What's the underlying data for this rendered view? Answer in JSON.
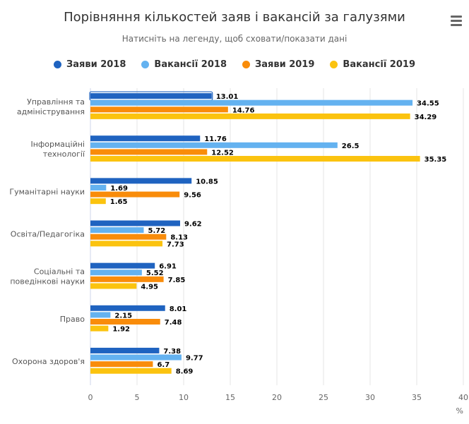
{
  "title": "Порівняння кількостей заяв і вакансій за галузями",
  "subtitle": "Натисніть на легенду, щоб сховати/показати дані",
  "menu_icon": "hamburger-icon",
  "chart_data": {
    "type": "bar",
    "orientation": "horizontal",
    "categories": [
      [
        "Управління та",
        "адміністрування"
      ],
      [
        "Інформаційні",
        "технології"
      ],
      [
        "Гуманітарні науки"
      ],
      [
        "Освіта/Педагогіка"
      ],
      [
        "Соціальні та",
        "поведінкові науки"
      ],
      [
        "Право"
      ],
      [
        "Охорона здоров'я"
      ]
    ],
    "series": [
      {
        "name": "Заяви 2018",
        "color": "#1f63c0",
        "values": [
          13.01,
          11.76,
          10.85,
          9.62,
          6.91,
          8.01,
          7.38
        ]
      },
      {
        "name": "Вакансії 2018",
        "color": "#64b2f0",
        "values": [
          34.55,
          26.5,
          1.69,
          5.72,
          5.52,
          2.15,
          9.77
        ]
      },
      {
        "name": "Заяви 2019",
        "color": "#f98c0a",
        "values": [
          14.76,
          12.52,
          9.56,
          8.13,
          7.85,
          7.48,
          6.7
        ]
      },
      {
        "name": "Вакансії 2019",
        "color": "#fbc30f",
        "values": [
          34.29,
          35.35,
          1.65,
          7.73,
          4.95,
          1.92,
          8.69
        ]
      }
    ],
    "xlim": [
      0,
      40
    ],
    "xticks": [
      "0",
      "5",
      "10",
      "15",
      "20",
      "25",
      "30",
      "35",
      "40"
    ],
    "unit_label": "%",
    "grid": true,
    "legend_position": "top",
    "data_labels": true
  }
}
